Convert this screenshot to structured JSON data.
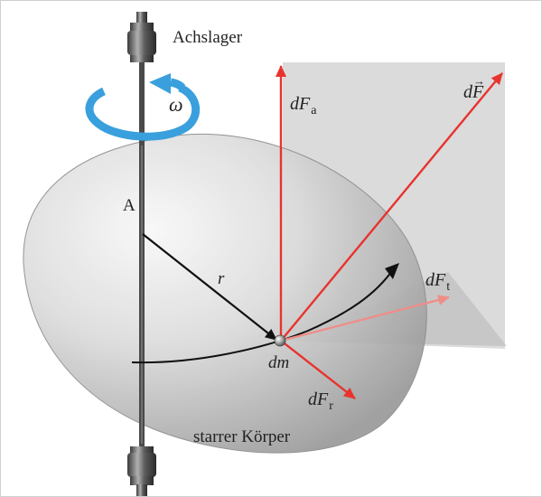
{
  "labels": {
    "bearing": "Achslager",
    "omega": "ω",
    "point_a": "A",
    "radius": "r",
    "mass_element": "dm",
    "body": "starrer Körper",
    "force_total_base": "dF",
    "force_axial_base": "dF",
    "force_axial_sub": "a",
    "force_tangential_base": "dF",
    "force_tangential_sub": "t",
    "force_radial_base": "dF",
    "force_radial_sub": "r"
  },
  "colors": {
    "force": "#e8332e",
    "rotation": "#39a0dd",
    "axis": "#505050",
    "body_fill": "#d8d8d8",
    "plane_fill": "#c8c8c8"
  },
  "icons": {
    "rotation": "circular-arrow-icon",
    "bearing": "bearing-cylinder-icon"
  }
}
